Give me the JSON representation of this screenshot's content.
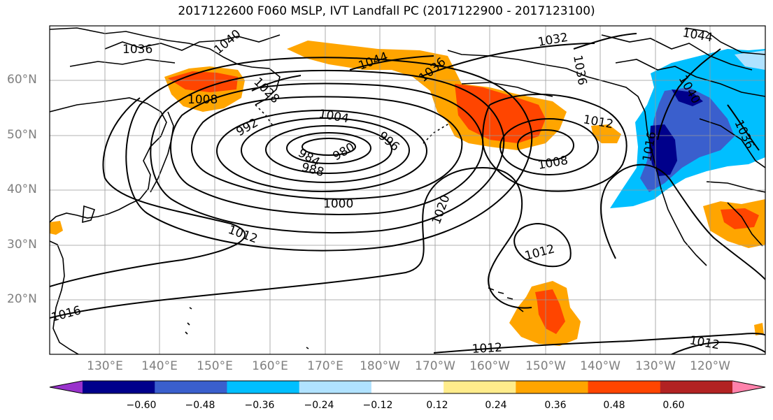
{
  "title": "2017122600 F060 MSLP, IVT Landfall PC (2017122900 - 2017123100)",
  "lat_labels": [
    "60°N",
    "50°N",
    "40°N",
    "30°N",
    "20°N"
  ],
  "lon_labels": [
    "130°E",
    "140°E",
    "150°E",
    "160°E",
    "170°E",
    "180°W",
    "170°W",
    "160°W",
    "150°W",
    "140°W",
    "130°W",
    "120°W"
  ],
  "colorbar": {
    "tick_labels": [
      "−0.60",
      "−0.48",
      "−0.36",
      "−0.24",
      "−0.12",
      "0.12",
      "0.24",
      "0.36",
      "0.48",
      "0.60"
    ],
    "colors": [
      "#9932cc",
      "#00008b",
      "#3a5fcd",
      "#00bfff",
      "#b0e2ff",
      "#ffffff",
      "#ffec8b",
      "#ffa500",
      "#ff4500",
      "#b22222",
      "#ff82ab"
    ]
  },
  "isobar_labels": [
    "1036",
    "1040",
    "1044",
    "1036",
    "1032",
    "1036",
    "1044",
    "1040",
    "1036",
    "1008",
    "1028",
    "1004",
    "992",
    "984",
    "980",
    "988",
    "996",
    "1008",
    "1012",
    "1016",
    "1000",
    "1020",
    "1012",
    "1012",
    "1016",
    "1012",
    "1012"
  ]
}
